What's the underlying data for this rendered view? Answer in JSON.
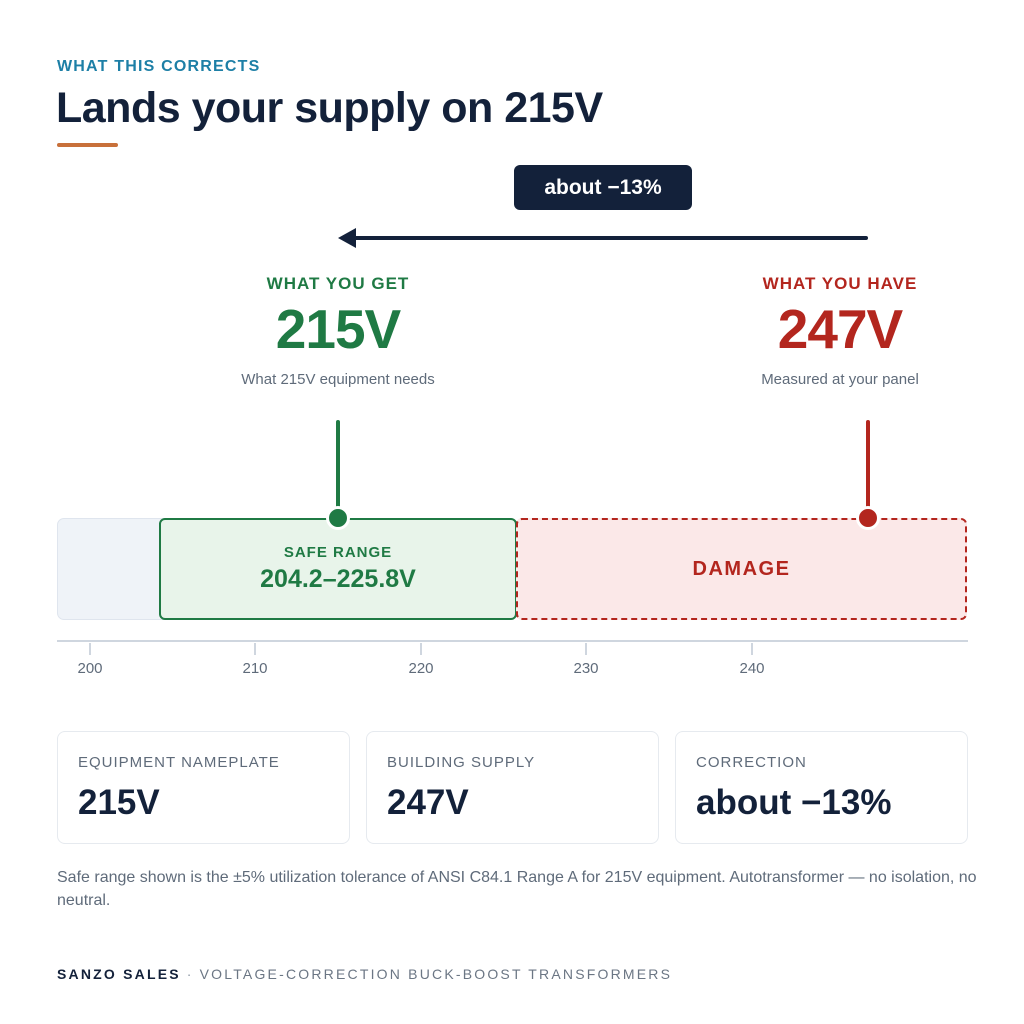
{
  "header": {
    "eyebrow": "WHAT THIS CORRECTS",
    "title": "Lands your supply on 215V"
  },
  "correction_pill": "about −13%",
  "target": {
    "label": "WHAT YOU GET",
    "value": "215V",
    "caption": "What 215V equipment needs"
  },
  "current": {
    "label": "WHAT YOU HAVE",
    "value": "247V",
    "caption": "Measured at your panel"
  },
  "bands": {
    "safe_label": "SAFE RANGE",
    "safe_range": "204.2–225.8V",
    "damage_label": "DAMAGE"
  },
  "axis": {
    "ticks": [
      "200",
      "210",
      "220",
      "230",
      "240"
    ]
  },
  "cards": [
    {
      "label": "EQUIPMENT NAMEPLATE",
      "value": "215V"
    },
    {
      "label": "BUILDING SUPPLY",
      "value": "247V"
    },
    {
      "label": "CORRECTION",
      "value": "about −13%"
    }
  ],
  "note": "Safe range shown is the ±5% utilization tolerance of ANSI C84.1 Range A for 215V equipment. Autotransformer — no isolation, no neutral.",
  "footer": {
    "brand": "SANZO SALES",
    "separator": "·",
    "tagline": "VOLTAGE-CORRECTION BUCK-BOOST TRANSFORMERS"
  },
  "colors": {
    "navy": "#13213a",
    "accent_blue": "#1d7fa6",
    "accent_orange": "#c8703a",
    "safe_green": "#1f7a44",
    "damage_red": "#b3261e"
  }
}
